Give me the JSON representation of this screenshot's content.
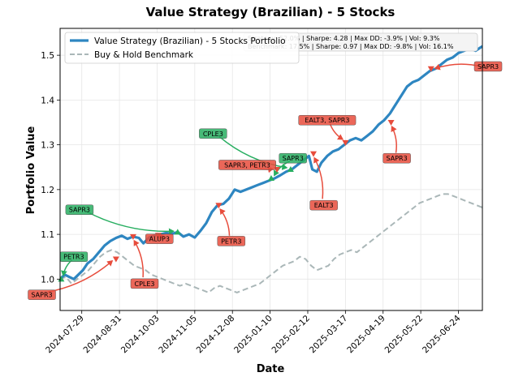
{
  "chart_data": {
    "type": "line",
    "title": "Value Strategy (Brazilian) - 5 Stocks",
    "xlabel": "Date",
    "ylabel": "Portfolio Value",
    "x_range": [
      "2024-07-10",
      "2025-07-15"
    ],
    "ylim": [
      0.93,
      1.56
    ],
    "grid": true,
    "legend_position": "top-left",
    "x_ticks": [
      "2024-07-29",
      "2024-08-31",
      "2024-10-03",
      "2024-11-05",
      "2024-12-08",
      "2025-01-10",
      "2025-02-12",
      "2025-03-17",
      "2025-04-19",
      "2025-05-22",
      "2025-06-24"
    ],
    "y_ticks": [
      1.0,
      1.1,
      1.2,
      1.3,
      1.4,
      1.5
    ],
    "y_tick_labels": [
      "1.0",
      "1.1",
      "1.2",
      "1.3",
      "1.4",
      "1.5"
    ],
    "series": [
      {
        "name": "Value Strategy (Brazilian) - 5 Stocks Portfolio",
        "color": "#2e86c1",
        "style": "solid",
        "points": [
          [
            "2024-07-10",
            1.0
          ],
          [
            "2024-07-14",
            1.01
          ],
          [
            "2024-07-18",
            1.005
          ],
          [
            "2024-07-22",
            1.0
          ],
          [
            "2024-07-26",
            1.01
          ],
          [
            "2024-07-30",
            1.02
          ],
          [
            "2024-08-03",
            1.035
          ],
          [
            "2024-08-08",
            1.045
          ],
          [
            "2024-08-13",
            1.06
          ],
          [
            "2024-08-18",
            1.075
          ],
          [
            "2024-08-23",
            1.085
          ],
          [
            "2024-08-28",
            1.092
          ],
          [
            "2024-09-02",
            1.097
          ],
          [
            "2024-09-07",
            1.09
          ],
          [
            "2024-09-12",
            1.095
          ],
          [
            "2024-09-17",
            1.092
          ],
          [
            "2024-09-21",
            1.08
          ],
          [
            "2024-09-26",
            1.093
          ],
          [
            "2024-10-01",
            1.098
          ],
          [
            "2024-10-06",
            1.1
          ],
          [
            "2024-10-11",
            1.103
          ],
          [
            "2024-10-16",
            1.101
          ],
          [
            "2024-10-21",
            1.105
          ],
          [
            "2024-10-26",
            1.095
          ],
          [
            "2024-10-31",
            1.1
          ],
          [
            "2024-11-05",
            1.093
          ],
          [
            "2024-11-10",
            1.108
          ],
          [
            "2024-11-15",
            1.125
          ],
          [
            "2024-11-20",
            1.15
          ],
          [
            "2024-11-25",
            1.165
          ],
          [
            "2024-11-30",
            1.168
          ],
          [
            "2024-12-05",
            1.18
          ],
          [
            "2024-12-10",
            1.2
          ],
          [
            "2024-12-15",
            1.195
          ],
          [
            "2024-12-20",
            1.2
          ],
          [
            "2024-12-25",
            1.205
          ],
          [
            "2024-12-30",
            1.21
          ],
          [
            "2025-01-04",
            1.215
          ],
          [
            "2025-01-09",
            1.22
          ],
          [
            "2025-01-14",
            1.225
          ],
          [
            "2025-01-19",
            1.232
          ],
          [
            "2025-01-24",
            1.24
          ],
          [
            "2025-01-29",
            1.245
          ],
          [
            "2025-02-03",
            1.255
          ],
          [
            "2025-02-08",
            1.265
          ],
          [
            "2025-02-13",
            1.275
          ],
          [
            "2025-02-16",
            1.245
          ],
          [
            "2025-02-20",
            1.24
          ],
          [
            "2025-02-24",
            1.26
          ],
          [
            "2025-03-01",
            1.275
          ],
          [
            "2025-03-06",
            1.285
          ],
          [
            "2025-03-11",
            1.29
          ],
          [
            "2025-03-16",
            1.3
          ],
          [
            "2025-03-21",
            1.31
          ],
          [
            "2025-03-26",
            1.315
          ],
          [
            "2025-03-31",
            1.31
          ],
          [
            "2025-04-05",
            1.32
          ],
          [
            "2025-04-10",
            1.33
          ],
          [
            "2025-04-15",
            1.345
          ],
          [
            "2025-04-20",
            1.355
          ],
          [
            "2025-04-25",
            1.37
          ],
          [
            "2025-04-30",
            1.39
          ],
          [
            "2025-05-05",
            1.41
          ],
          [
            "2025-05-10",
            1.43
          ],
          [
            "2025-05-15",
            1.44
          ],
          [
            "2025-05-20",
            1.445
          ],
          [
            "2025-05-25",
            1.455
          ],
          [
            "2025-05-30",
            1.465
          ],
          [
            "2025-06-04",
            1.47
          ],
          [
            "2025-06-09",
            1.48
          ],
          [
            "2025-06-14",
            1.49
          ],
          [
            "2025-06-19",
            1.495
          ],
          [
            "2025-06-24",
            1.505
          ],
          [
            "2025-06-29",
            1.51
          ],
          [
            "2025-07-04",
            1.515
          ],
          [
            "2025-07-09",
            1.51
          ],
          [
            "2025-07-15",
            1.52
          ]
        ]
      },
      {
        "name": "Buy & Hold Benchmark",
        "color": "#aab7b8",
        "style": "dashed",
        "points": [
          [
            "2024-07-10",
            1.0
          ],
          [
            "2024-07-15",
            1.005
          ],
          [
            "2024-07-20",
            0.99
          ],
          [
            "2024-07-25",
            1.0
          ],
          [
            "2024-07-30",
            1.01
          ],
          [
            "2024-08-04",
            1.02
          ],
          [
            "2024-08-09",
            1.035
          ],
          [
            "2024-08-14",
            1.05
          ],
          [
            "2024-08-19",
            1.06
          ],
          [
            "2024-08-24",
            1.065
          ],
          [
            "2024-08-29",
            1.06
          ],
          [
            "2024-09-03",
            1.05
          ],
          [
            "2024-09-08",
            1.04
          ],
          [
            "2024-09-13",
            1.03
          ],
          [
            "2024-09-18",
            1.025
          ],
          [
            "2024-09-23",
            1.02
          ],
          [
            "2024-09-28",
            1.01
          ],
          [
            "2024-10-03",
            1.005
          ],
          [
            "2024-10-08",
            1.0
          ],
          [
            "2024-10-13",
            0.995
          ],
          [
            "2024-10-18",
            0.99
          ],
          [
            "2024-10-23",
            0.985
          ],
          [
            "2024-10-28",
            0.99
          ],
          [
            "2024-11-02",
            0.985
          ],
          [
            "2024-11-07",
            0.98
          ],
          [
            "2024-11-12",
            0.975
          ],
          [
            "2024-11-17",
            0.97
          ],
          [
            "2024-11-22",
            0.98
          ],
          [
            "2024-11-27",
            0.985
          ],
          [
            "2024-12-02",
            0.98
          ],
          [
            "2024-12-07",
            0.975
          ],
          [
            "2024-12-12",
            0.97
          ],
          [
            "2024-12-17",
            0.975
          ],
          [
            "2024-12-22",
            0.98
          ],
          [
            "2024-12-27",
            0.985
          ],
          [
            "2025-01-01",
            0.99
          ],
          [
            "2025-01-06",
            1.0
          ],
          [
            "2025-01-11",
            1.01
          ],
          [
            "2025-01-16",
            1.02
          ],
          [
            "2025-01-21",
            1.03
          ],
          [
            "2025-01-26",
            1.035
          ],
          [
            "2025-01-31",
            1.04
          ],
          [
            "2025-02-05",
            1.05
          ],
          [
            "2025-02-10",
            1.045
          ],
          [
            "2025-02-15",
            1.03
          ],
          [
            "2025-02-20",
            1.02
          ],
          [
            "2025-02-25",
            1.025
          ],
          [
            "2025-03-02",
            1.03
          ],
          [
            "2025-03-07",
            1.045
          ],
          [
            "2025-03-12",
            1.055
          ],
          [
            "2025-03-17",
            1.06
          ],
          [
            "2025-03-22",
            1.065
          ],
          [
            "2025-03-27",
            1.06
          ],
          [
            "2025-04-01",
            1.07
          ],
          [
            "2025-04-06",
            1.08
          ],
          [
            "2025-04-11",
            1.09
          ],
          [
            "2025-04-16",
            1.1
          ],
          [
            "2025-04-21",
            1.11
          ],
          [
            "2025-04-26",
            1.12
          ],
          [
            "2025-05-01",
            1.13
          ],
          [
            "2025-05-06",
            1.14
          ],
          [
            "2025-05-11",
            1.15
          ],
          [
            "2025-05-16",
            1.16
          ],
          [
            "2025-05-21",
            1.17
          ],
          [
            "2025-05-26",
            1.175
          ],
          [
            "2025-05-31",
            1.18
          ],
          [
            "2025-06-05",
            1.185
          ],
          [
            "2025-06-10",
            1.19
          ],
          [
            "2025-06-15",
            1.19
          ],
          [
            "2025-06-20",
            1.185
          ],
          [
            "2025-06-25",
            1.18
          ],
          [
            "2025-06-30",
            1.175
          ],
          [
            "2025-07-05",
            1.17
          ],
          [
            "2025-07-10",
            1.165
          ],
          [
            "2025-07-15",
            1.16
          ]
        ]
      }
    ],
    "stats": {
      "strategy": "Strategy: 52.0% | Sharpe: 4.28 | Max DD: -3.9% | Vol: 9.3%",
      "benchmark": "Benchmark: 17.5% | Sharpe: 0.97 | Max DD: -9.8% | Vol: 16.1%"
    },
    "trades": [
      {
        "label": "SAPR3",
        "type": "sell",
        "date": "2024-08-28",
        "value": 1.045,
        "label_pos": [
          "2024-06-24",
          0.965
        ]
      },
      {
        "label": "PETR3",
        "type": "buy",
        "date": "2024-07-11",
        "value": 1.0,
        "label_pos": [
          "2024-07-22",
          1.05
        ]
      },
      {
        "label": "CPLE3",
        "type": "sell",
        "date": "2024-09-12",
        "value": 1.095,
        "label_pos": [
          "2024-09-22",
          0.99
        ]
      },
      {
        "label": "SAPR3",
        "type": "buy",
        "date": "2024-10-21",
        "value": 1.105,
        "label_pos": [
          "2024-07-27",
          1.155
        ]
      },
      {
        "label": "ALUP3",
        "type": "sell",
        "date": "2024-10-04",
        "value": 1.098,
        "label_pos": [
          "2024-10-05",
          1.09
        ]
      },
      {
        "label": "PETR3",
        "type": "sell",
        "date": "2024-11-26",
        "value": 1.165,
        "label_pos": [
          "2024-12-07",
          1.085
        ]
      },
      {
        "label": "CPLE3",
        "type": "buy",
        "date": "2025-01-28",
        "value": 1.245,
        "label_pos": [
          "2024-11-21",
          1.325
        ]
      },
      {
        "label": "SAPR3",
        "type": "buy",
        "date": "2025-01-11",
        "value": 1.225,
        "label_pos": [
          "2025-01-30",
          1.27
        ]
      },
      {
        "label": "SAPR3, PETR3",
        "type": "sell",
        "date": "2025-01-16",
        "value": 1.245,
        "label_pos": [
          "2024-12-21",
          1.255
        ]
      },
      {
        "label": "EALT3",
        "type": "sell",
        "date": "2025-02-17",
        "value": 1.28,
        "label_pos": [
          "2025-02-26",
          1.165
        ]
      },
      {
        "label": "EALT3, SAPR3",
        "type": "sell",
        "date": "2025-03-17",
        "value": 1.305,
        "label_pos": [
          "2025-03-01",
          1.355
        ]
      },
      {
        "label": "SAPR3",
        "type": "sell",
        "date": "2025-04-26",
        "value": 1.35,
        "label_pos": [
          "2025-05-01",
          1.27
        ]
      },
      {
        "label": "SAPR3",
        "type": "sell",
        "date": "2025-05-31",
        "value": 1.47,
        "label_pos": [
          "2025-07-20",
          1.475
        ]
      }
    ]
  }
}
